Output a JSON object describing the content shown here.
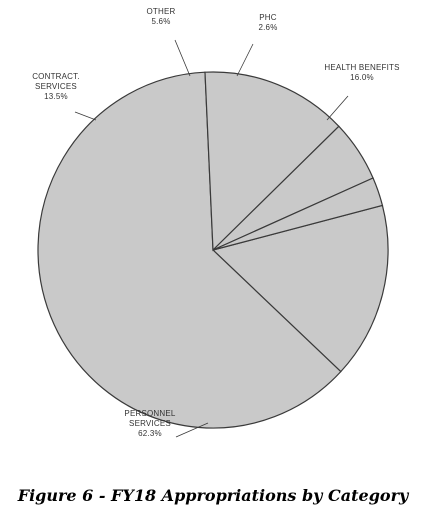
{
  "chart_data": {
    "type": "pie",
    "title": "Figure 6 - FY18 Appropriations by Category",
    "slices": [
      {
        "label": [
          "HEALTH BENEFITS"
        ],
        "pct_text": "16.0%",
        "value": 16.0
      },
      {
        "label": [
          "PERSONNEL",
          "SERVICES"
        ],
        "pct_text": "62.3%",
        "value": 62.3
      },
      {
        "label": [
          "CONTRACT.",
          "SERVICES"
        ],
        "pct_text": "13.5%",
        "value": 13.5
      },
      {
        "label": [
          "OTHER"
        ],
        "pct_text": "5.6%",
        "value": 5.6
      },
      {
        "label": [
          "PHC"
        ],
        "pct_text": "2.6%",
        "value": 2.6
      }
    ],
    "colors": {
      "fill": "#c9c9c9",
      "stroke": "#3a3a3a"
    }
  }
}
